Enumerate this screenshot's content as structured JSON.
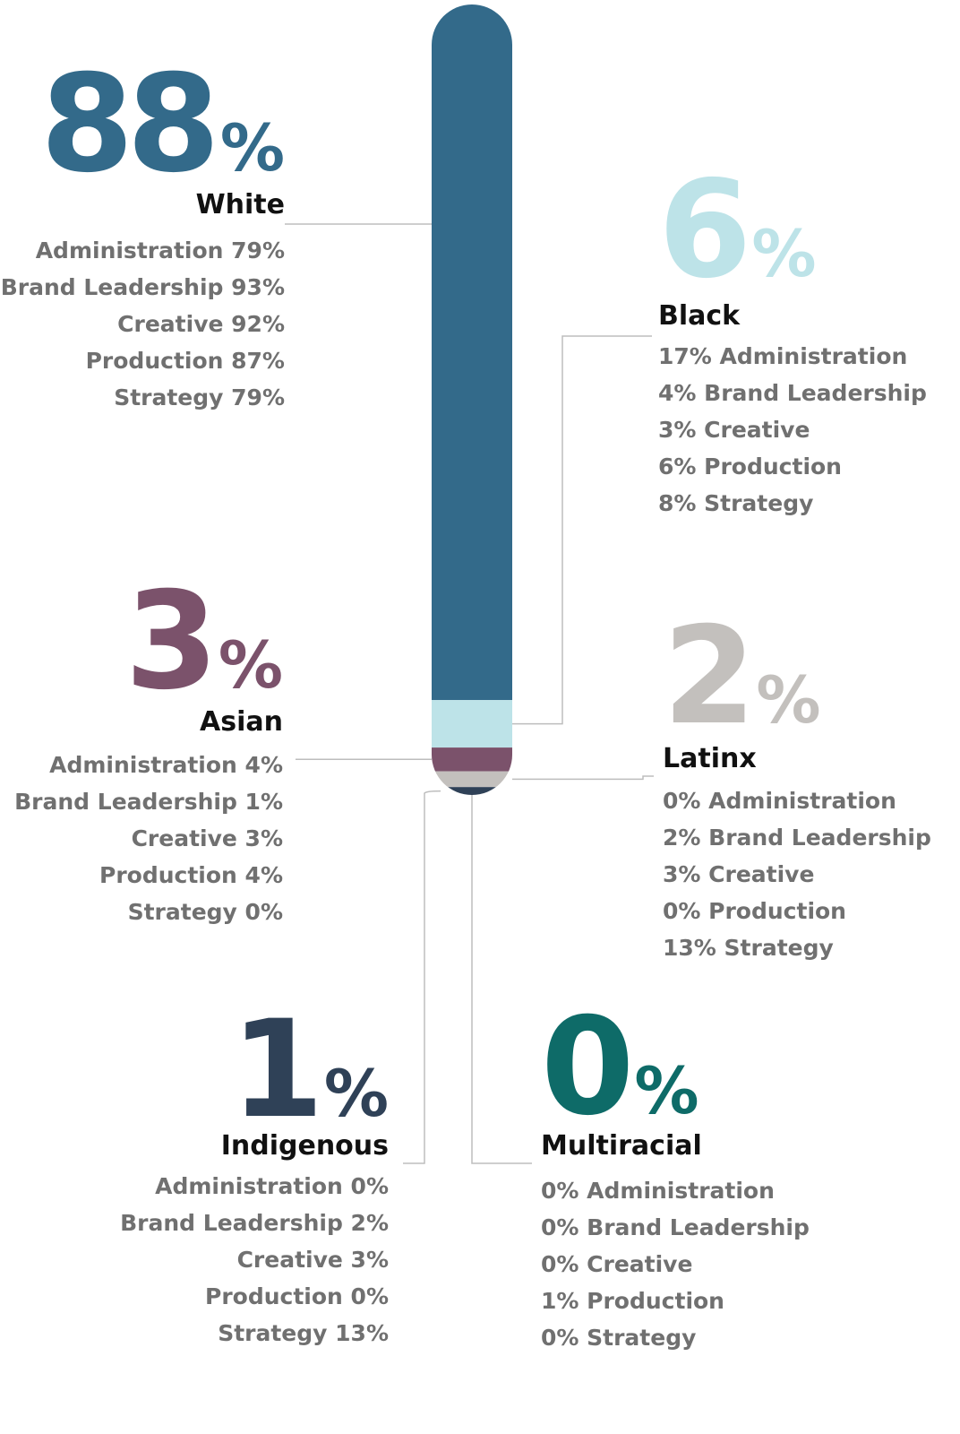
{
  "chart_data": {
    "type": "stacked-bar",
    "unit": "%",
    "series": [
      {
        "name": "White",
        "color": "#336a8a",
        "values": [
          88
        ],
        "details": [
          "Administration 79%",
          "Brand Leadership 93%",
          "Creative 92%",
          "Production 87%",
          "Strategy 79%"
        ]
      },
      {
        "name": "Black",
        "color": "#bde3e8",
        "values": [
          6
        ],
        "details": [
          "17% Administration",
          "4% Brand Leadership",
          "3% Creative",
          "6% Production",
          "8% Strategy"
        ]
      },
      {
        "name": "Asian",
        "color": "#7b526b",
        "values": [
          3
        ],
        "details": [
          "Administration 4%",
          "Brand Leadership 1%",
          "Creative 3%",
          "Production 4%",
          "Strategy 0%"
        ]
      },
      {
        "name": "Latinx",
        "color": "#c3c0bd",
        "values": [
          2
        ],
        "details": [
          "0% Administration",
          "2% Brand Leadership",
          "3% Creative",
          "0%  Production",
          "13% Strategy"
        ]
      },
      {
        "name": "Indigenous",
        "color": "#2f4157",
        "values": [
          1
        ],
        "details": [
          "Administration 0%",
          "Brand Leadership 2%",
          "Creative 3%",
          "Production 0%",
          "Strategy 13%"
        ]
      },
      {
        "name": "Multiracial",
        "color": "#0e6b68",
        "values": [
          0
        ],
        "details": [
          "0% Administration",
          "0% Brand Leadership",
          "0% Creative",
          "1%  Production",
          "0% Strategy"
        ]
      }
    ]
  }
}
